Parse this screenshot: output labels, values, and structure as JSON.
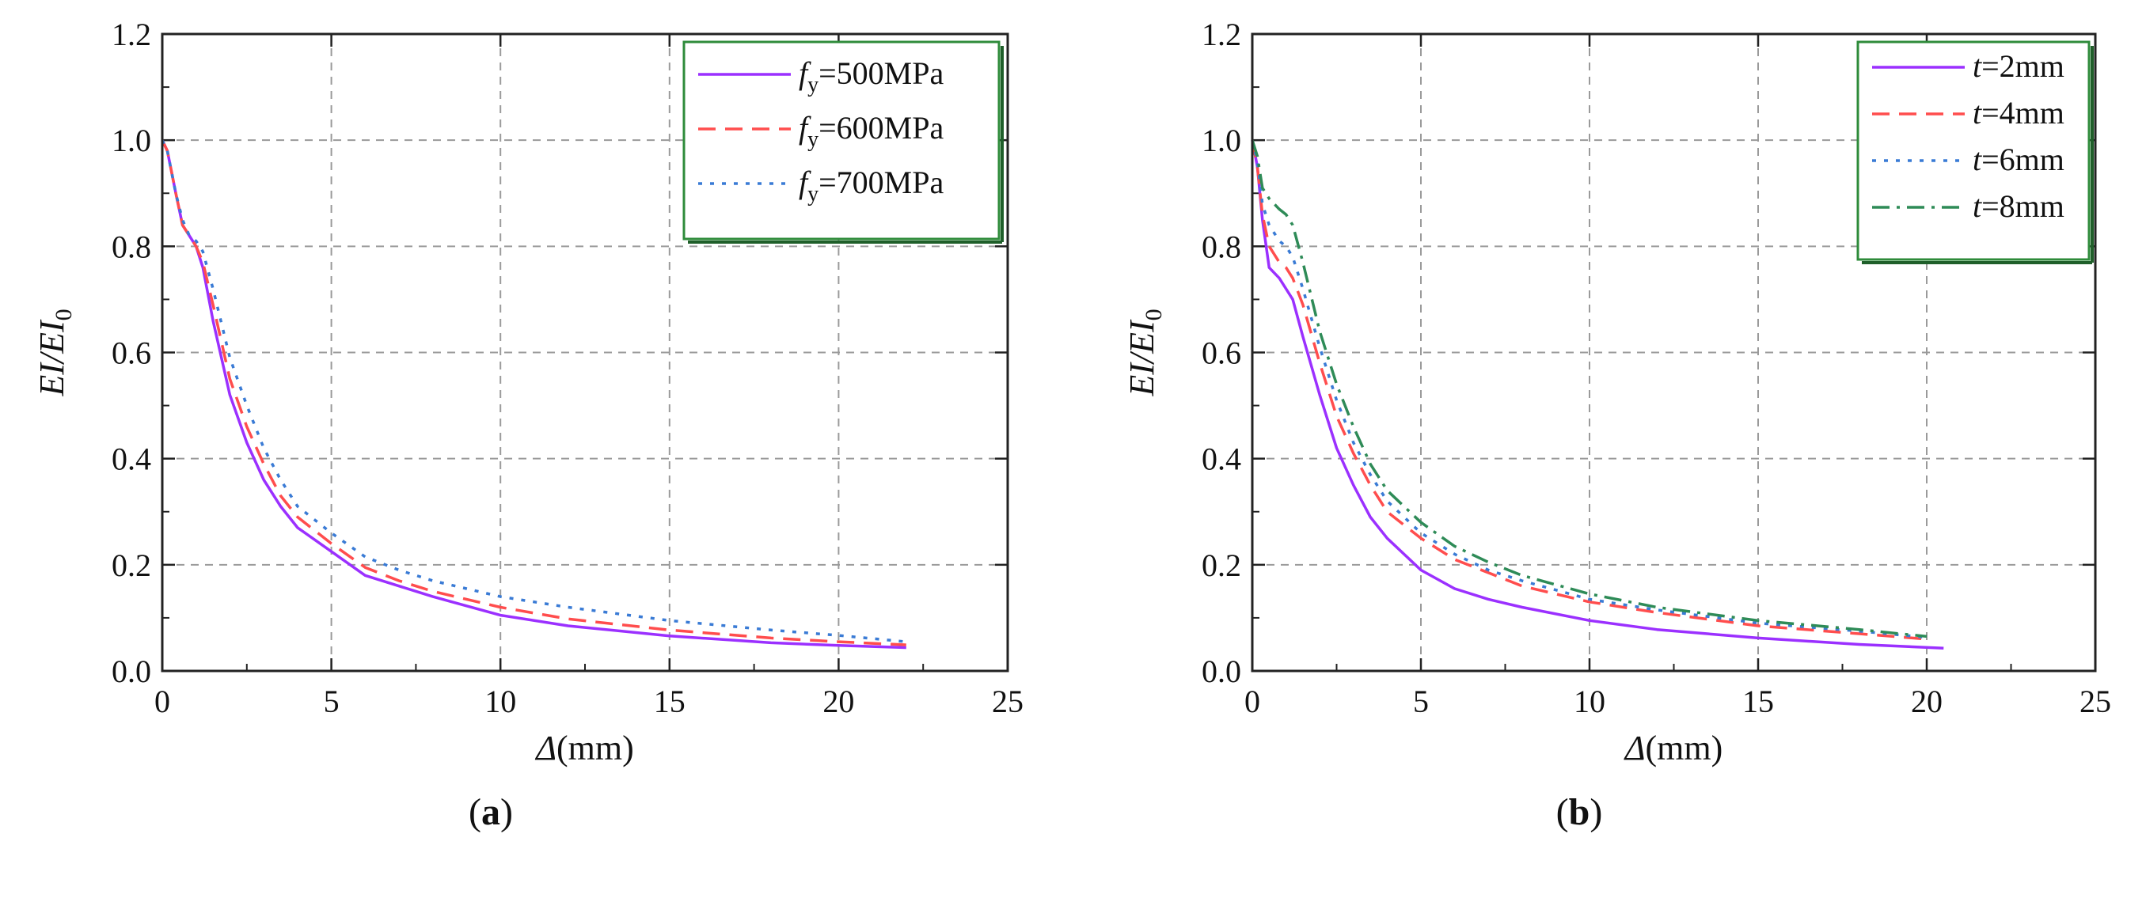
{
  "chart_data": [
    {
      "type": "line",
      "panel_label": "a",
      "xlabel": "Δ(mm)",
      "ylabel": "EI/EI0",
      "xlim": [
        0,
        25
      ],
      "ylim": [
        0,
        1.2
      ],
      "xticks": [
        "0",
        "5",
        "10",
        "15",
        "20",
        "25"
      ],
      "yticks": [
        "0.0",
        "0.2",
        "0.4",
        "0.6",
        "0.8",
        "1.0",
        "1.2"
      ],
      "grid": true,
      "legend_position": "top-right",
      "series": [
        {
          "name": "fy=500MPa",
          "sym": "f",
          "sub": "y",
          "rest": "=500MPa",
          "color": "#9b30ff",
          "dash": "solid",
          "x": [
            0,
            0.15,
            0.4,
            0.6,
            0.8,
            1.0,
            1.2,
            1.5,
            2,
            2.5,
            3,
            3.5,
            4,
            5,
            6,
            7,
            8,
            10,
            12,
            15,
            18,
            20,
            22
          ],
          "y": [
            1.0,
            0.98,
            0.9,
            0.84,
            0.82,
            0.8,
            0.76,
            0.66,
            0.52,
            0.43,
            0.36,
            0.31,
            0.27,
            0.225,
            0.18,
            0.16,
            0.14,
            0.105,
            0.085,
            0.066,
            0.053,
            0.048,
            0.044
          ]
        },
        {
          "name": "fy=600MPa",
          "sym": "f",
          "sub": "y",
          "rest": "=600MPa",
          "color": "#ff4d4d",
          "dash": "dashed",
          "x": [
            0,
            0.15,
            0.4,
            0.6,
            0.8,
            1.0,
            1.2,
            1.5,
            2,
            2.5,
            3,
            3.5,
            4,
            5,
            6,
            7,
            8,
            10,
            12,
            15,
            18,
            20,
            22
          ],
          "y": [
            1.0,
            0.98,
            0.9,
            0.84,
            0.82,
            0.8,
            0.77,
            0.69,
            0.55,
            0.46,
            0.39,
            0.33,
            0.29,
            0.24,
            0.195,
            0.17,
            0.15,
            0.12,
            0.098,
            0.077,
            0.062,
            0.055,
            0.049
          ]
        },
        {
          "name": "fy=700MPa",
          "sym": "f",
          "sub": "y",
          "rest": "=700MPa",
          "color": "#3a7bd5",
          "dash": "dotted",
          "x": [
            0,
            0.15,
            0.4,
            0.6,
            0.8,
            1.0,
            1.2,
            1.5,
            2,
            2.5,
            3,
            3.5,
            4,
            5,
            6,
            7,
            8,
            10,
            12,
            15,
            18,
            20,
            22
          ],
          "y": [
            1.0,
            0.98,
            0.9,
            0.85,
            0.82,
            0.81,
            0.79,
            0.72,
            0.59,
            0.5,
            0.42,
            0.36,
            0.31,
            0.26,
            0.215,
            0.19,
            0.17,
            0.14,
            0.12,
            0.095,
            0.077,
            0.067,
            0.055
          ]
        }
      ]
    },
    {
      "type": "line",
      "panel_label": "b",
      "xlabel": "Δ(mm)",
      "ylabel": "EI/EI0",
      "xlim": [
        0,
        25
      ],
      "ylim": [
        0,
        1.2
      ],
      "xticks": [
        "0",
        "5",
        "10",
        "15",
        "20",
        "25"
      ],
      "yticks": [
        "0.0",
        "0.2",
        "0.4",
        "0.6",
        "0.8",
        "1.0",
        "1.2"
      ],
      "grid": true,
      "legend_position": "top-right",
      "series": [
        {
          "name": "t=2mm",
          "sym": "t",
          "sub": "",
          "rest": "=2mm",
          "color": "#9b30ff",
          "dash": "solid",
          "x": [
            0,
            0.15,
            0.3,
            0.5,
            0.8,
            1.0,
            1.2,
            1.5,
            2,
            2.5,
            3,
            3.5,
            4,
            5,
            6,
            7,
            8,
            10,
            12,
            15,
            18,
            20.5
          ],
          "y": [
            1.0,
            0.95,
            0.85,
            0.76,
            0.74,
            0.72,
            0.7,
            0.63,
            0.52,
            0.42,
            0.35,
            0.29,
            0.25,
            0.19,
            0.155,
            0.135,
            0.12,
            0.095,
            0.078,
            0.062,
            0.05,
            0.043
          ]
        },
        {
          "name": "t=4mm",
          "sym": "t",
          "sub": "",
          "rest": "=4mm",
          "color": "#ff4d4d",
          "dash": "dashed",
          "x": [
            0,
            0.15,
            0.3,
            0.5,
            0.8,
            1.0,
            1.2,
            1.5,
            2,
            2.5,
            3,
            3.5,
            4,
            5,
            6,
            7,
            8,
            10,
            12,
            15,
            18,
            20
          ],
          "y": [
            1.0,
            0.95,
            0.86,
            0.8,
            0.77,
            0.76,
            0.74,
            0.69,
            0.58,
            0.48,
            0.41,
            0.35,
            0.3,
            0.25,
            0.21,
            0.185,
            0.16,
            0.13,
            0.11,
            0.085,
            0.07,
            0.06
          ]
        },
        {
          "name": "t=6mm",
          "sym": "t",
          "sub": "",
          "rest": "=6mm",
          "color": "#3a7bd5",
          "dash": "dotted",
          "x": [
            0,
            0.15,
            0.3,
            0.5,
            0.8,
            1.0,
            1.2,
            1.5,
            2,
            2.5,
            3,
            3.5,
            4,
            5,
            6,
            7,
            8,
            10,
            12,
            15,
            18,
            20
          ],
          "y": [
            1.0,
            0.96,
            0.88,
            0.84,
            0.81,
            0.8,
            0.78,
            0.72,
            0.61,
            0.51,
            0.43,
            0.37,
            0.32,
            0.26,
            0.22,
            0.19,
            0.17,
            0.135,
            0.115,
            0.09,
            0.075,
            0.063
          ]
        },
        {
          "name": "t=8mm",
          "sym": "t",
          "sub": "",
          "rest": "=8mm",
          "color": "#2e8b57",
          "dash": "dashdot",
          "x": [
            0,
            0.15,
            0.3,
            0.5,
            0.8,
            1.0,
            1.2,
            1.5,
            2,
            2.5,
            3,
            3.5,
            4,
            5,
            6,
            7,
            8,
            10,
            12,
            15,
            18,
            20
          ],
          "y": [
            1.0,
            0.97,
            0.91,
            0.89,
            0.87,
            0.86,
            0.84,
            0.77,
            0.64,
            0.54,
            0.46,
            0.39,
            0.34,
            0.28,
            0.235,
            0.205,
            0.18,
            0.145,
            0.12,
            0.095,
            0.078,
            0.065
          ]
        }
      ]
    }
  ]
}
